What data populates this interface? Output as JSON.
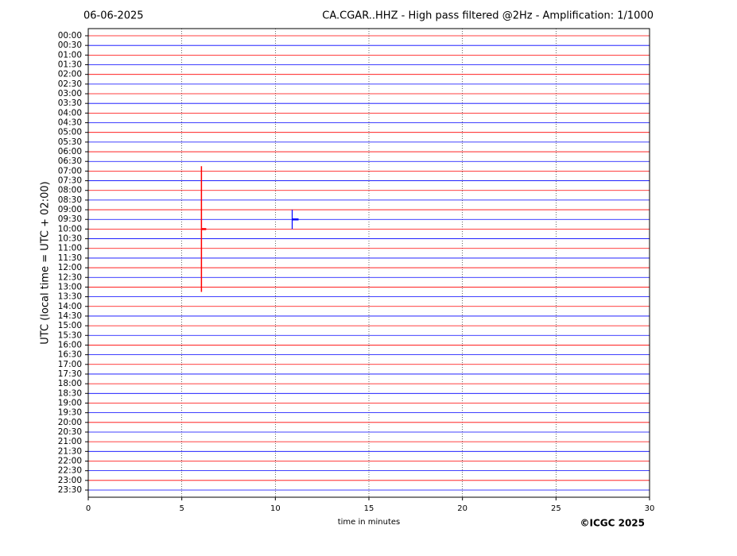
{
  "chart_data": {
    "type": "helicorder",
    "date": "06-06-2025",
    "title": "CA.CGAR..HHZ - High pass filtered @2Hz - Amplification: 1/1000",
    "xlabel": "time in minutes",
    "ylabel": "UTC (local time = UTC + 02:00)",
    "credit": "©ICGC 2025",
    "rows": [
      "00:00",
      "00:30",
      "01:00",
      "01:30",
      "02:00",
      "02:30",
      "03:00",
      "03:30",
      "04:00",
      "04:30",
      "05:00",
      "05:30",
      "06:00",
      "06:30",
      "07:00",
      "07:30",
      "08:00",
      "08:30",
      "09:00",
      "09:30",
      "10:00",
      "10:30",
      "11:00",
      "11:30",
      "12:00",
      "12:30",
      "13:00",
      "13:30",
      "14:00",
      "14:30",
      "15:00",
      "15:30",
      "16:00",
      "16:30",
      "17:00",
      "17:30",
      "18:00",
      "18:30",
      "19:00",
      "19:30",
      "20:00",
      "20:30",
      "21:00",
      "21:30",
      "22:00",
      "22:30",
      "23:00",
      "23:30"
    ],
    "row_colors": [
      "#ff0000",
      "#0000ff"
    ],
    "xlim": [
      0,
      30
    ],
    "xticks": [
      0,
      5,
      10,
      15,
      20,
      25,
      30
    ],
    "grid": true,
    "events": [
      {
        "row": 20,
        "minute": 6.05,
        "color": "#ff0000"
      },
      {
        "row": 19,
        "minute": 10.9,
        "color": "#0000ff"
      }
    ]
  }
}
